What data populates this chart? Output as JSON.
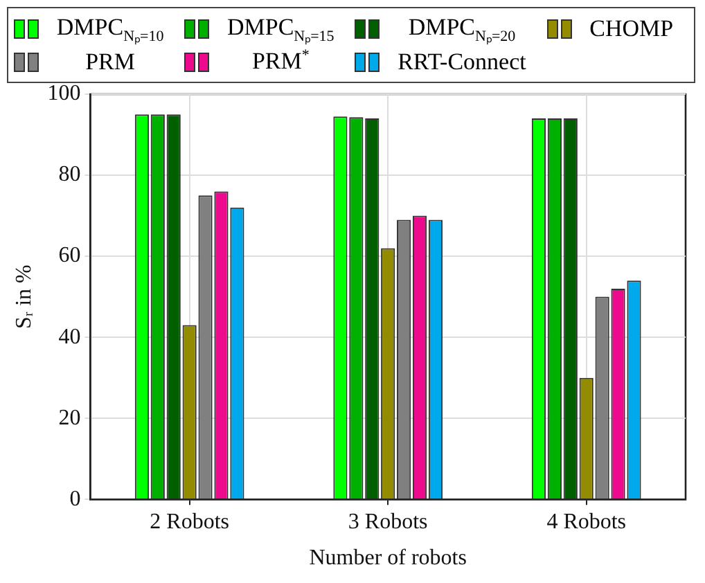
{
  "chart_data": {
    "type": "bar",
    "xlabel": "Number of robots",
    "ylabel": "Sᵣ in %",
    "categories": [
      "2 Robots",
      "3 Robots",
      "4 Robots"
    ],
    "series": [
      {
        "name": "DMPC$_{Nₚ=10}$",
        "color": "#00ff00",
        "values": [
          95,
          94.5,
          94
        ]
      },
      {
        "name": "DMPC$_{Nₚ=15}$",
        "color": "#00b000",
        "values": [
          95,
          94.3,
          94
        ]
      },
      {
        "name": "DMPC$_{Nₚ=20}$",
        "color": "#006000",
        "values": [
          95,
          94,
          94
        ]
      },
      {
        "name": "CHOMP",
        "color": "#948c00",
        "values": [
          43,
          62,
          30
        ]
      },
      {
        "name": "PRM",
        "color": "#808080",
        "values": [
          75,
          69,
          50
        ]
      },
      {
        "name": "PRM$^{*}$",
        "color": "#ee0a8c",
        "values": [
          76,
          70,
          52
        ]
      },
      {
        "name": "RRT-Connect",
        "color": "#00a8ec",
        "values": [
          72,
          69,
          54
        ]
      }
    ],
    "ylim": [
      0,
      100
    ],
    "yticks": [
      0,
      20,
      40,
      60,
      80,
      100
    ],
    "grid": true,
    "legend": "top"
  }
}
